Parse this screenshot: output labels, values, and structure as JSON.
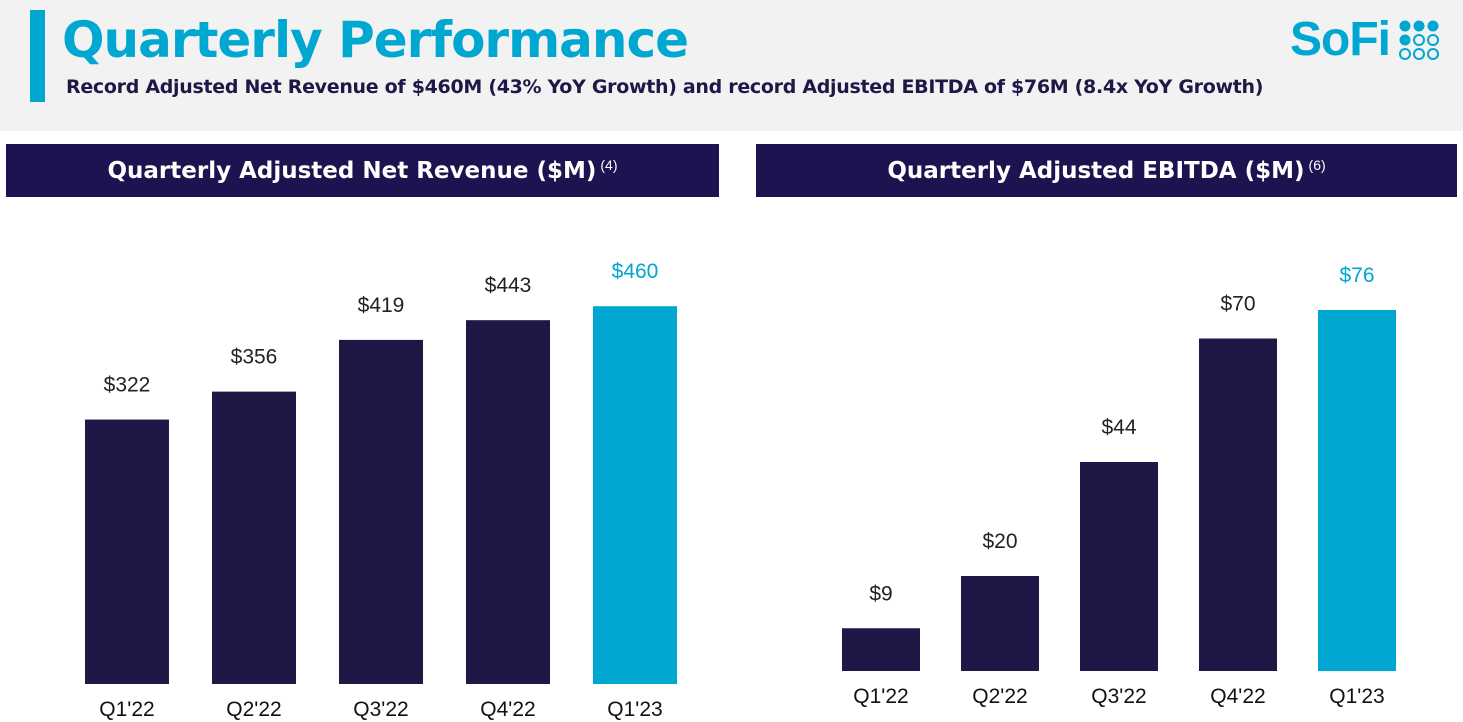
{
  "header": {
    "title": "Quarterly Performance",
    "subtitle": "Record Adjusted Net Revenue of $460M (43% YoY Growth) and record Adjusted EBITDA of $76M (8.4x YoY Growth)",
    "logo_text": "SoFi",
    "logo_icon": "sofi-dots-icon"
  },
  "colors": {
    "brand_cyan": "#00a7d0",
    "navy": "#201747",
    "header_bar": "#1c1450",
    "header_background": "#f2f2f2"
  },
  "chart_data": [
    {
      "type": "bar",
      "title": "Quarterly Adjusted Net Revenue ($M)",
      "footnote": "(4)",
      "categories": [
        "Q1'22",
        "Q2'22",
        "Q3'22",
        "Q4'22",
        "Q1'23"
      ],
      "values": [
        322,
        356,
        419,
        443,
        460
      ],
      "value_labels": [
        "$322",
        "$356",
        "$419",
        "$443",
        "$460"
      ],
      "highlight_index": 4,
      "ylim": [
        0,
        470
      ],
      "xlabel": "",
      "ylabel": "",
      "grid": false,
      "legend": "none"
    },
    {
      "type": "bar",
      "title": "Quarterly Adjusted EBITDA ($M)",
      "footnote": "(6)",
      "categories": [
        "Q1'22",
        "Q2'22",
        "Q3'22",
        "Q4'22",
        "Q1'23"
      ],
      "values": [
        9,
        20,
        44,
        70,
        76
      ],
      "value_labels": [
        "$9",
        "$20",
        "$44",
        "$70",
        "$76"
      ],
      "highlight_index": 4,
      "ylim": [
        0,
        80
      ],
      "xlabel": "",
      "ylabel": "",
      "grid": false,
      "legend": "none"
    }
  ]
}
